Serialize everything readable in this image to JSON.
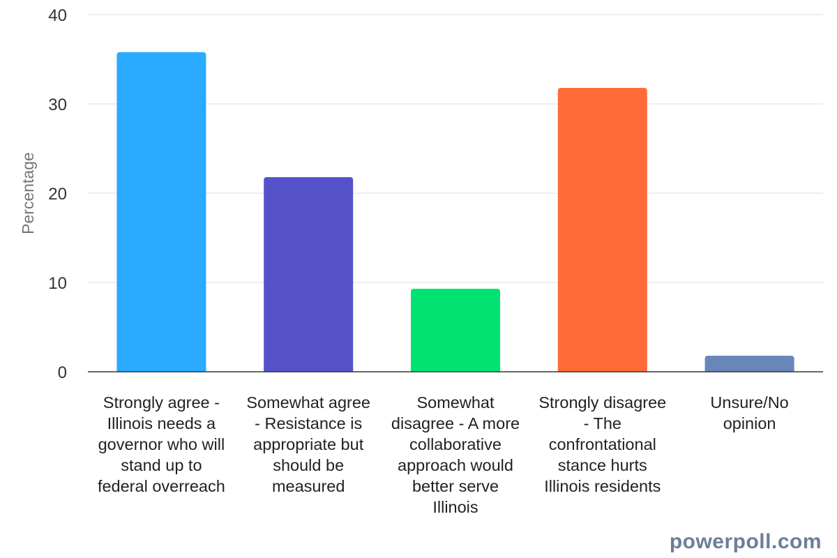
{
  "chart_data": {
    "type": "bar",
    "categories": [
      "Strongly agree - Illinois needs a governor who will stand up to federal overreach",
      "Somewhat agree - Resistance is appropriate but should be measured",
      "Somewhat disagree - A more collaborative approach would better serve Illinois",
      "Strongly disagree - The confrontational stance hurts Illinois residents",
      "Unsure/No opinion"
    ],
    "values": [
      35.8,
      21.8,
      9.3,
      31.8,
      1.8
    ],
    "colors": [
      "#29abff",
      "#5451c9",
      "#00e372",
      "#ff6b37",
      "#6986b9"
    ],
    "title": "",
    "xlabel": "",
    "ylabel": "Percentage",
    "ylim": [
      0,
      40
    ],
    "yticks": [
      "0",
      "10",
      "20",
      "30",
      "40"
    ],
    "grid": true
  },
  "watermark": "powerpoll.com"
}
